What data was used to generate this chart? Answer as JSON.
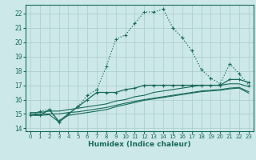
{
  "title": "",
  "xlabel": "Humidex (Indice chaleur)",
  "bg_color": "#cce8e8",
  "grid_color": "#aacccc",
  "line_color": "#1a6b5a",
  "xlim": [
    -0.5,
    23.5
  ],
  "ylim": [
    13.8,
    22.6
  ],
  "yticks": [
    14,
    15,
    16,
    17,
    18,
    19,
    20,
    21,
    22
  ],
  "xticks": [
    0,
    1,
    2,
    3,
    4,
    5,
    6,
    7,
    8,
    9,
    10,
    11,
    12,
    13,
    14,
    15,
    16,
    17,
    18,
    19,
    20,
    21,
    22,
    23
  ],
  "series1_x": [
    0,
    1,
    2,
    3,
    4,
    5,
    6,
    7,
    8,
    9,
    10,
    11,
    12,
    13,
    14,
    15,
    16,
    17,
    18,
    19,
    20,
    21,
    22,
    23
  ],
  "series1_y": [
    14.9,
    15.2,
    15.3,
    14.4,
    15.0,
    15.5,
    16.3,
    16.7,
    18.3,
    20.2,
    20.5,
    21.3,
    22.1,
    22.1,
    22.3,
    21.0,
    20.3,
    19.4,
    18.1,
    17.5,
    17.1,
    18.5,
    17.8,
    17.0
  ],
  "series2_x": [
    0,
    1,
    2,
    3,
    4,
    5,
    6,
    7,
    8,
    9,
    10,
    11,
    12,
    13,
    14,
    15,
    16,
    17,
    18,
    19,
    20,
    21,
    22,
    23
  ],
  "series2_y": [
    15.0,
    14.9,
    15.3,
    14.5,
    15.0,
    15.5,
    16.0,
    16.5,
    16.5,
    16.5,
    16.7,
    16.8,
    17.0,
    17.0,
    17.0,
    17.0,
    17.0,
    17.0,
    17.0,
    17.0,
    17.0,
    17.4,
    17.4,
    17.2
  ],
  "series3_x": [
    0,
    1,
    2,
    3,
    4,
    5,
    6,
    7,
    8,
    9,
    10,
    11,
    12,
    13,
    14,
    15,
    16,
    17,
    18,
    19,
    20,
    21,
    22,
    23
  ],
  "series3_y": [
    15.1,
    15.1,
    15.2,
    15.2,
    15.3,
    15.4,
    15.5,
    15.6,
    15.7,
    15.9,
    16.0,
    16.2,
    16.3,
    16.5,
    16.6,
    16.7,
    16.8,
    16.9,
    17.0,
    17.0,
    17.0,
    17.1,
    17.1,
    16.9
  ],
  "series4_x": [
    0,
    1,
    2,
    3,
    4,
    5,
    6,
    7,
    8,
    9,
    10,
    11,
    12,
    13,
    14,
    15,
    16,
    17,
    18,
    19,
    20,
    21,
    22,
    23
  ],
  "series4_y": [
    15.0,
    15.0,
    15.0,
    15.0,
    15.1,
    15.15,
    15.25,
    15.35,
    15.45,
    15.6,
    15.75,
    15.88,
    16.0,
    16.1,
    16.2,
    16.3,
    16.4,
    16.5,
    16.6,
    16.65,
    16.7,
    16.8,
    16.85,
    16.55
  ],
  "series5_x": [
    0,
    1,
    2,
    3,
    4,
    5,
    6,
    7,
    8,
    9,
    10,
    11,
    12,
    13,
    14,
    15,
    16,
    17,
    18,
    19,
    20,
    21,
    22,
    23
  ],
  "series5_y": [
    14.9,
    14.9,
    14.95,
    14.45,
    14.9,
    15.0,
    15.1,
    15.2,
    15.3,
    15.5,
    15.65,
    15.8,
    15.95,
    16.05,
    16.15,
    16.25,
    16.35,
    16.45,
    16.55,
    16.6,
    16.65,
    16.75,
    16.8,
    16.45
  ]
}
